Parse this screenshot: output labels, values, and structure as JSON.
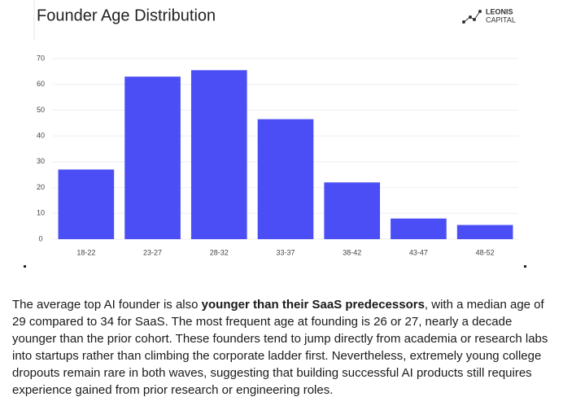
{
  "chart_data": {
    "type": "bar",
    "title": "Founder Age Distribution",
    "categories": [
      "18-22",
      "23-27",
      "28-32",
      "33-37",
      "38-42",
      "43-47",
      "48-52"
    ],
    "values": [
      27,
      63,
      65.5,
      46.5,
      22,
      8,
      5.5
    ],
    "color": "#4b4ef4",
    "ylim": [
      0,
      70
    ],
    "yticks": [
      0,
      10,
      20,
      30,
      40,
      50,
      60,
      70
    ],
    "grid": true
  },
  "logo": {
    "line1": "LEONIS",
    "line2": "CAPITAL"
  },
  "paragraph": [
    "The average top AI founder is also ",
    "younger than their SaaS predecessors",
    ", with a median age of 29 compared to 34 for SaaS. The most frequent age at founding is 26 or 27, nearly a decade younger than the prior cohort. These founders tend to jump directly from academia or research labs into startups rather than climbing the corporate ladder first. Nevertheless, extremely young college dropouts remain rare in both waves, suggesting that building successful AI products still requires experience gained from prior research or engineering roles."
  ]
}
